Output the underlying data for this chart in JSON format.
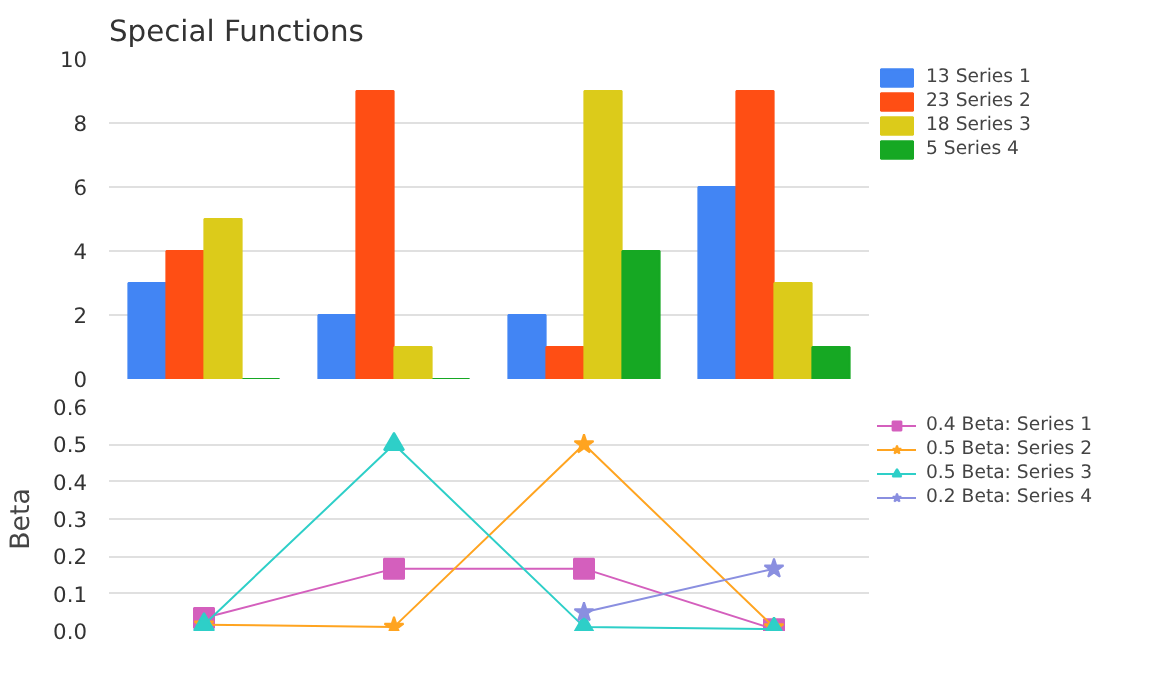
{
  "chart_data": [
    {
      "type": "bar",
      "title": "Special Functions",
      "categories": [
        null,
        null,
        null,
        null
      ],
      "ylim": [
        0,
        10
      ],
      "yticks": [
        0,
        2,
        4,
        6,
        8,
        10
      ],
      "grid": "y",
      "legend": "right",
      "tick_labels": "y",
      "series": [
        {
          "name": "13 Series 1",
          "color": "#4285f4",
          "values": [
            3,
            2,
            2,
            6
          ]
        },
        {
          "name": "23 Series 2",
          "color": "#ff4e14",
          "values": [
            4,
            9,
            1,
            9
          ]
        },
        {
          "name": "18 Series 3",
          "color": "#dccb1a",
          "values": [
            5,
            1,
            9,
            3
          ]
        },
        {
          "name": "5 Series 4",
          "color": "#16a823",
          "values": [
            0,
            0,
            4,
            1
          ]
        }
      ]
    },
    {
      "type": "line",
      "ylabel": "Beta",
      "categories": [
        null,
        null,
        null,
        null
      ],
      "ylim": [
        0,
        0.6
      ],
      "yticks": [
        {
          "value": 0,
          "label": "0.0"
        },
        0.1,
        0.2,
        0.3,
        0.4,
        0.5,
        0.6
      ],
      "grid": "y",
      "legend": "right",
      "tick_labels": "y",
      "series": [
        {
          "name": "0.4 Beta: Series 1",
          "color": "#d45fbd",
          "marker": "square",
          "values": [
            0.035,
            0.167,
            0.167,
            0.005
          ]
        },
        {
          "name": "0.5 Beta: Series 2",
          "color": "#ffa420",
          "marker": "star",
          "values": [
            0.017,
            0.011,
            0.5,
            0.01
          ]
        },
        {
          "name": "0.5 Beta: Series 3",
          "color": "#2ecfc8",
          "marker": "triangle",
          "values": [
            0.017,
            0.5,
            0.011,
            0.005
          ]
        },
        {
          "name": "0.2 Beta: Series 4",
          "color": "#8a8fe0",
          "marker": "star",
          "values": [
            null,
            null,
            0.05,
            0.167
          ]
        }
      ]
    }
  ]
}
